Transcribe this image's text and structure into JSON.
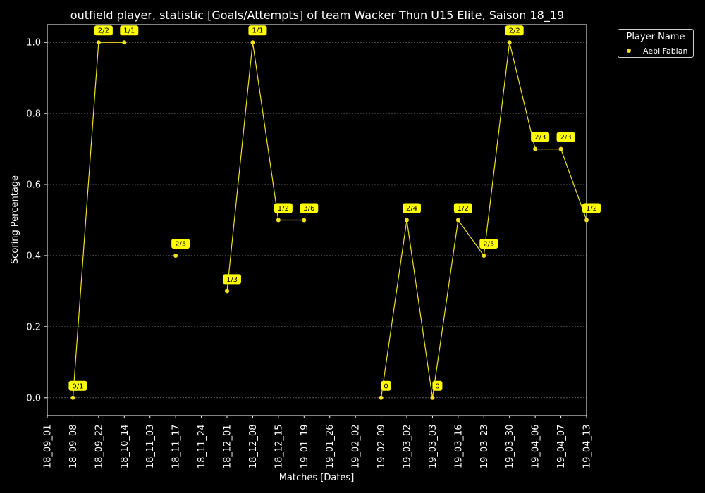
{
  "colors": {
    "background": "#000000",
    "series": "#f2e11d",
    "label_bg": "#ffff00",
    "label_fg": "#000000",
    "grid": "#6e6e6e",
    "axes": "#ffffff"
  },
  "legend": {
    "title": "Player Name",
    "entries": [
      "Aebi Fabian"
    ],
    "placement": "upper-right-outside"
  },
  "chart_data": {
    "type": "line",
    "title": "outfield player, statistic [Goals/Attempts] of team Wacker Thun U15 Elite, Saison 18_19",
    "xlabel": "Matches [Dates]",
    "ylabel": "Scoring Percentage",
    "ylim": [
      -0.05,
      1.05
    ],
    "yticks": [
      0.0,
      0.2,
      0.4,
      0.6,
      0.8,
      1.0
    ],
    "ytick_labels": [
      "0.0",
      "0.2",
      "0.4",
      "0.6",
      "0.8",
      "1.0"
    ],
    "grid": "horizontal-dotted",
    "categories": [
      "18_09_01",
      "18_09_08",
      "18_09_22",
      "18_10_14",
      "18_11_03",
      "18_11_17",
      "18_11_24",
      "18_12_01",
      "18_12_08",
      "18_12_15",
      "19_01_19",
      "19_01_26",
      "19_02_02",
      "19_02_09",
      "19_03_02",
      "19_03_03",
      "19_03_16",
      "19_03_23",
      "19_03_30",
      "19_04_06",
      "19_04_07",
      "19_04_13"
    ],
    "series": [
      {
        "name": "Aebi Fabian",
        "values": [
          null,
          0.0,
          1.0,
          1.0,
          null,
          0.4,
          null,
          0.3,
          1.0,
          0.5,
          0.5,
          null,
          null,
          0.0,
          0.5,
          0.0,
          0.5,
          0.4,
          1.0,
          0.7,
          0.7,
          0.5
        ],
        "labels": [
          null,
          "0/1",
          "2/2",
          "1/1",
          null,
          "2/5",
          null,
          "1/3",
          "1/1",
          "1/2",
          "3/6",
          null,
          null,
          "0",
          "2/4",
          "0",
          "1/2",
          "2/5",
          "2/2",
          "2/3",
          "2/3",
          "1/2"
        ]
      }
    ]
  }
}
